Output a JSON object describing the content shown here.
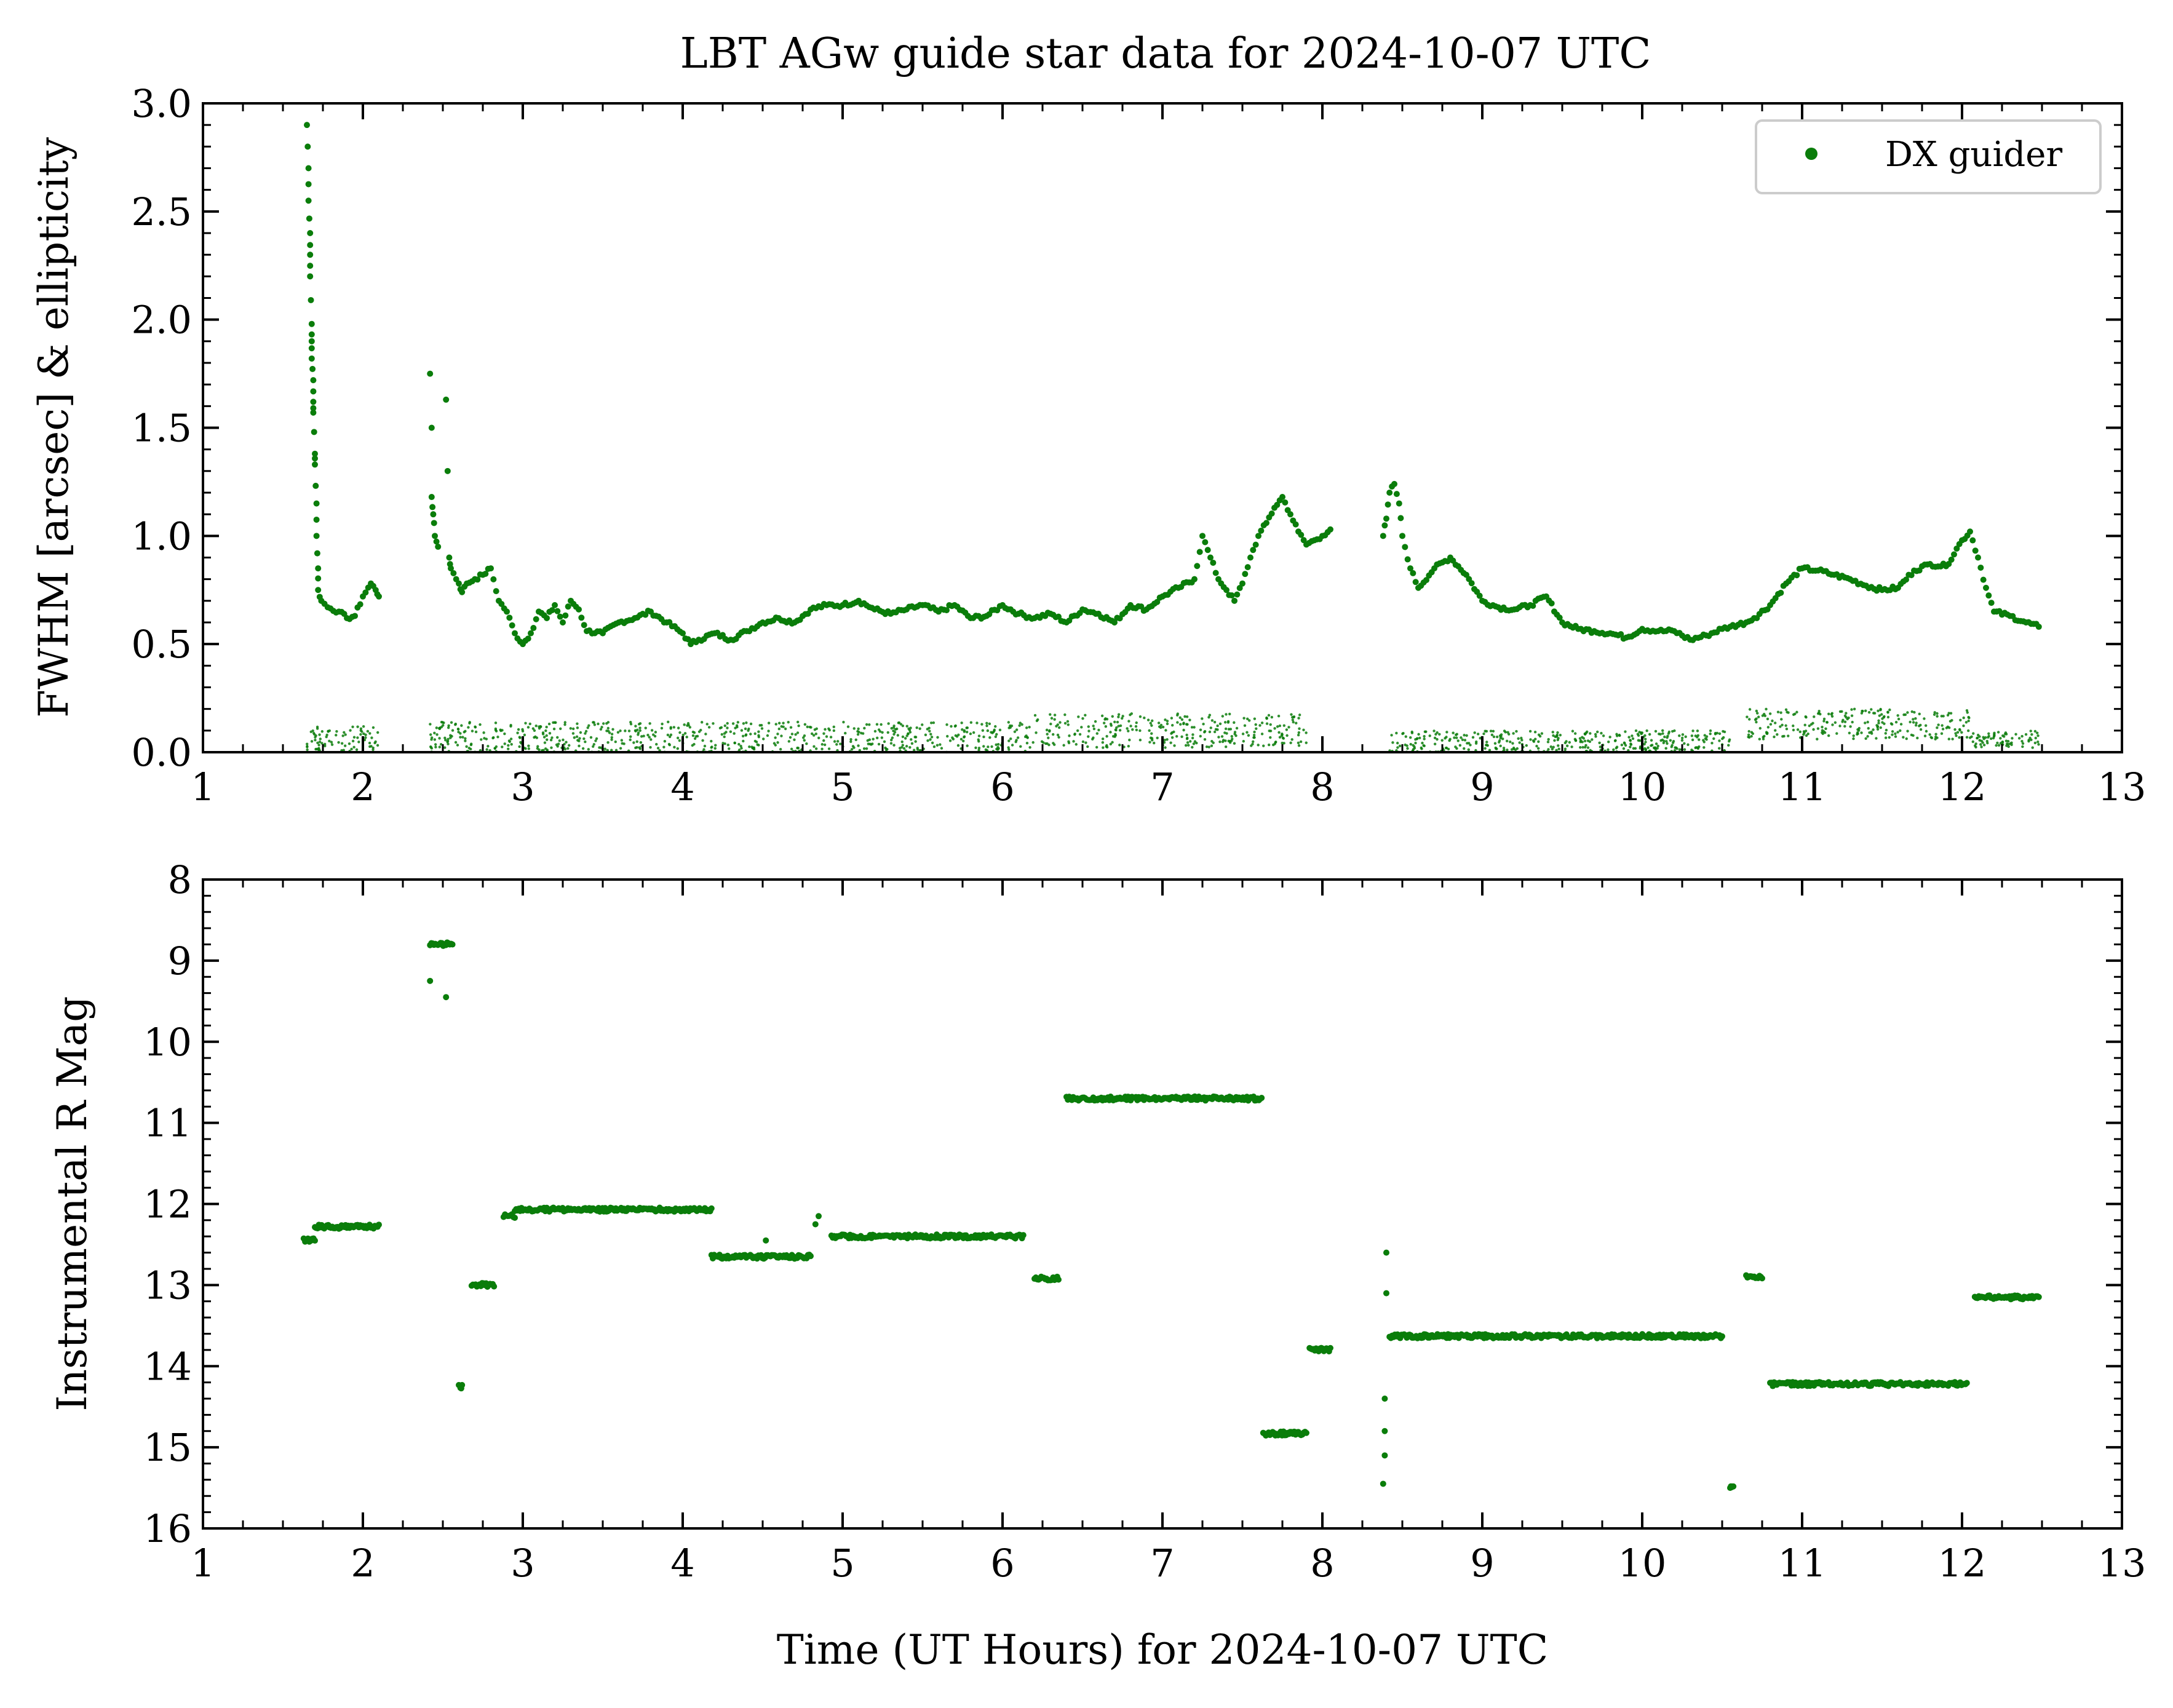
{
  "title": "LBT AGw guide star data for 2024-10-07 UTC",
  "colors": {
    "series": "#0a7d0a",
    "axes": "#000000",
    "legend_border": "#cccccc"
  },
  "chart_data": [
    {
      "type": "scatter",
      "ylabel": "FWHM [arcsec] & ellipticity",
      "xlim": [
        1,
        13
      ],
      "ylim": [
        0,
        3
      ],
      "x_ticks": [
        "1",
        "2",
        "3",
        "4",
        "5",
        "6",
        "7",
        "8",
        "9",
        "10",
        "11",
        "12",
        "13"
      ],
      "y_ticks": [
        "0.0",
        "0.5",
        "1.0",
        "1.5",
        "2.0",
        "2.5",
        "3.0"
      ],
      "legend": {
        "label": "DX guider",
        "position": "top-right"
      },
      "series": [
        {
          "name": "DX guider",
          "values_kind": "fwhm",
          "points": [
            [
              1.65,
              2.9
            ],
            [
              1.66,
              2.7
            ],
            [
              1.66,
              2.55
            ],
            [
              1.67,
              2.4
            ],
            [
              1.67,
              2.3
            ],
            [
              1.67,
              2.2
            ],
            [
              1.68,
              1.98
            ],
            [
              1.68,
              1.9
            ],
            [
              1.68,
              1.82
            ],
            [
              1.69,
              1.72
            ],
            [
              1.69,
              1.62
            ],
            [
              1.69,
              1.57
            ],
            [
              1.7,
              1.38
            ],
            [
              1.7,
              1.33
            ],
            [
              1.71,
              1.15
            ],
            [
              1.71,
              1.0
            ],
            [
              1.72,
              0.85
            ],
            [
              1.72,
              0.75
            ],
            [
              1.74,
              0.7
            ],
            [
              1.78,
              0.67
            ],
            [
              1.85,
              0.65
            ],
            [
              1.9,
              0.62
            ],
            [
              1.95,
              0.63
            ],
            [
              2.0,
              0.72
            ],
            [
              2.05,
              0.78
            ],
            [
              2.08,
              0.75
            ],
            [
              2.1,
              0.72
            ],
            [
              2.42,
              1.75
            ],
            [
              2.43,
              1.5
            ],
            [
              2.43,
              1.18
            ],
            [
              2.44,
              1.1
            ],
            [
              2.45,
              1.0
            ],
            [
              2.47,
              0.95
            ],
            [
              2.52,
              1.63
            ],
            [
              2.53,
              1.3
            ],
            [
              2.54,
              0.9
            ],
            [
              2.55,
              0.85
            ],
            [
              2.6,
              0.78
            ],
            [
              2.62,
              0.74
            ],
            [
              2.65,
              0.78
            ],
            [
              2.7,
              0.8
            ],
            [
              2.75,
              0.82
            ],
            [
              2.8,
              0.85
            ],
            [
              2.85,
              0.7
            ],
            [
              2.9,
              0.65
            ],
            [
              2.95,
              0.55
            ],
            [
              3.0,
              0.5
            ],
            [
              3.05,
              0.55
            ],
            [
              3.1,
              0.65
            ],
            [
              3.15,
              0.62
            ],
            [
              3.2,
              0.68
            ],
            [
              3.25,
              0.6
            ],
            [
              3.3,
              0.7
            ],
            [
              3.35,
              0.66
            ],
            [
              3.4,
              0.56
            ],
            [
              3.5,
              0.55
            ],
            [
              3.6,
              0.6
            ],
            [
              3.7,
              0.62
            ],
            [
              3.8,
              0.65
            ],
            [
              3.9,
              0.6
            ],
            [
              4.0,
              0.55
            ],
            [
              4.05,
              0.5
            ],
            [
              4.1,
              0.52
            ],
            [
              4.2,
              0.55
            ],
            [
              4.3,
              0.52
            ],
            [
              4.4,
              0.56
            ],
            [
              4.5,
              0.6
            ],
            [
              4.6,
              0.62
            ],
            [
              4.7,
              0.6
            ],
            [
              4.8,
              0.66
            ],
            [
              4.9,
              0.68
            ],
            [
              5.0,
              0.68
            ],
            [
              5.1,
              0.7
            ],
            [
              5.2,
              0.66
            ],
            [
              5.3,
              0.64
            ],
            [
              5.4,
              0.66
            ],
            [
              5.5,
              0.68
            ],
            [
              5.6,
              0.65
            ],
            [
              5.7,
              0.68
            ],
            [
              5.8,
              0.62
            ],
            [
              5.9,
              0.63
            ],
            [
              6.0,
              0.68
            ],
            [
              6.1,
              0.64
            ],
            [
              6.2,
              0.62
            ],
            [
              6.3,
              0.64
            ],
            [
              6.4,
              0.6
            ],
            [
              6.5,
              0.66
            ],
            [
              6.6,
              0.64
            ],
            [
              6.7,
              0.6
            ],
            [
              6.8,
              0.68
            ],
            [
              6.9,
              0.66
            ],
            [
              7.0,
              0.72
            ],
            [
              7.1,
              0.76
            ],
            [
              7.2,
              0.8
            ],
            [
              7.25,
              1.0
            ],
            [
              7.3,
              0.9
            ],
            [
              7.35,
              0.8
            ],
            [
              7.4,
              0.75
            ],
            [
              7.45,
              0.7
            ],
            [
              7.5,
              0.78
            ],
            [
              7.55,
              0.9
            ],
            [
              7.6,
              1.0
            ],
            [
              7.65,
              1.06
            ],
            [
              7.7,
              1.13
            ],
            [
              7.75,
              1.18
            ],
            [
              7.8,
              1.1
            ],
            [
              7.85,
              1.02
            ],
            [
              7.9,
              0.96
            ],
            [
              7.95,
              0.98
            ],
            [
              8.0,
              1.0
            ],
            [
              8.05,
              1.03
            ],
            [
              8.38,
              1.0
            ],
            [
              8.4,
              1.08
            ],
            [
              8.42,
              1.2
            ],
            [
              8.45,
              1.24
            ],
            [
              8.48,
              1.15
            ],
            [
              8.5,
              1.0
            ],
            [
              8.55,
              0.85
            ],
            [
              8.6,
              0.76
            ],
            [
              8.7,
              0.85
            ],
            [
              8.8,
              0.9
            ],
            [
              8.9,
              0.82
            ],
            [
              9.0,
              0.7
            ],
            [
              9.1,
              0.67
            ],
            [
              9.2,
              0.66
            ],
            [
              9.3,
              0.68
            ],
            [
              9.4,
              0.72
            ],
            [
              9.5,
              0.6
            ],
            [
              9.6,
              0.57
            ],
            [
              9.7,
              0.56
            ],
            [
              9.8,
              0.55
            ],
            [
              9.9,
              0.53
            ],
            [
              10.0,
              0.57
            ],
            [
              10.1,
              0.56
            ],
            [
              10.2,
              0.56
            ],
            [
              10.3,
              0.52
            ],
            [
              10.4,
              0.54
            ],
            [
              10.5,
              0.57
            ],
            [
              10.55,
              0.58
            ],
            [
              10.65,
              0.6
            ],
            [
              10.7,
              0.62
            ],
            [
              10.8,
              0.68
            ],
            [
              10.9,
              0.78
            ],
            [
              11.0,
              0.85
            ],
            [
              11.1,
              0.84
            ],
            [
              11.2,
              0.82
            ],
            [
              11.3,
              0.8
            ],
            [
              11.4,
              0.77
            ],
            [
              11.5,
              0.75
            ],
            [
              11.6,
              0.76
            ],
            [
              11.7,
              0.84
            ],
            [
              11.8,
              0.87
            ],
            [
              11.9,
              0.86
            ],
            [
              12.0,
              0.98
            ],
            [
              12.05,
              1.02
            ],
            [
              12.1,
              0.9
            ],
            [
              12.15,
              0.76
            ],
            [
              12.2,
              0.65
            ],
            [
              12.3,
              0.63
            ],
            [
              12.4,
              0.6
            ],
            [
              12.48,
              0.58
            ]
          ]
        },
        {
          "name": "",
          "values_kind": "ellipticity",
          "segments": [
            {
              "x_range": [
                1.65,
                2.1
              ],
              "y_range": [
                0.0,
                0.12
              ]
            },
            {
              "x_range": [
                2.42,
                6.2
              ],
              "y_range": [
                0.0,
                0.14
              ]
            },
            {
              "x_range": [
                6.2,
                7.9
              ],
              "y_range": [
                0.02,
                0.18
              ]
            },
            {
              "x_range": [
                8.42,
                10.55
              ],
              "y_range": [
                0.0,
                0.1
              ]
            },
            {
              "x_range": [
                10.65,
                12.05
              ],
              "y_range": [
                0.06,
                0.2
              ]
            },
            {
              "x_range": [
                12.05,
                12.48
              ],
              "y_range": [
                0.02,
                0.1
              ]
            }
          ]
        }
      ]
    },
    {
      "type": "scatter",
      "ylabel": "Instrumental R Mag",
      "xlabel": "Time (UT Hours) for 2024-10-07 UTC",
      "xlim": [
        1,
        13
      ],
      "ylim": [
        16,
        8
      ],
      "y_inverted": true,
      "x_ticks": [
        "1",
        "2",
        "3",
        "4",
        "5",
        "6",
        "7",
        "8",
        "9",
        "10",
        "11",
        "12",
        "13"
      ],
      "y_ticks": [
        "8",
        "9",
        "10",
        "11",
        "12",
        "13",
        "14",
        "15",
        "16"
      ],
      "series": [
        {
          "name": "",
          "segments": [
            {
              "x_range": [
                1.63,
                1.7
              ],
              "y": 12.45
            },
            {
              "x_range": [
                1.7,
                2.1
              ],
              "y": 12.28
            },
            {
              "x_range": [
                2.42,
                2.56
              ],
              "y": 8.8
            },
            {
              "x_range": [
                2.6,
                2.62
              ],
              "y": 14.25
            },
            {
              "x_range": [
                2.68,
                2.82
              ],
              "y": 13.0
            },
            {
              "x_range": [
                2.88,
                2.95
              ],
              "y": 12.15
            },
            {
              "x_range": [
                2.95,
                4.18
              ],
              "y": 12.07
            },
            {
              "x_range": [
                4.18,
                4.8
              ],
              "y": 12.65
            },
            {
              "x_range": [
                4.93,
                6.13
              ],
              "y": 12.4
            },
            {
              "x_range": [
                6.2,
                6.35
              ],
              "y": 12.92
            },
            {
              "x_range": [
                6.4,
                7.62
              ],
              "y": 10.7
            },
            {
              "x_range": [
                7.63,
                7.9
              ],
              "y": 14.83
            },
            {
              "x_range": [
                7.92,
                8.05
              ],
              "y": 13.8
            },
            {
              "x_range": [
                8.42,
                10.5
              ],
              "y": 13.63
            },
            {
              "x_range": [
                10.55,
                10.57
              ],
              "y": 15.5
            },
            {
              "x_range": [
                10.65,
                10.75
              ],
              "y": 12.9
            },
            {
              "x_range": [
                10.8,
                12.03
              ],
              "y": 14.22
            },
            {
              "x_range": [
                12.08,
                12.48
              ],
              "y": 13.15
            }
          ],
          "scatter_points": [
            [
              2.42,
              9.25
            ],
            [
              2.52,
              9.45
            ],
            [
              4.52,
              12.45
            ],
            [
              4.83,
              12.25
            ],
            [
              4.85,
              12.15
            ],
            [
              8.4,
              12.6
            ],
            [
              8.4,
              13.1
            ],
            [
              8.39,
              14.4
            ],
            [
              8.39,
              14.8
            ],
            [
              8.39,
              15.1
            ],
            [
              8.38,
              15.45
            ]
          ]
        }
      ]
    }
  ]
}
